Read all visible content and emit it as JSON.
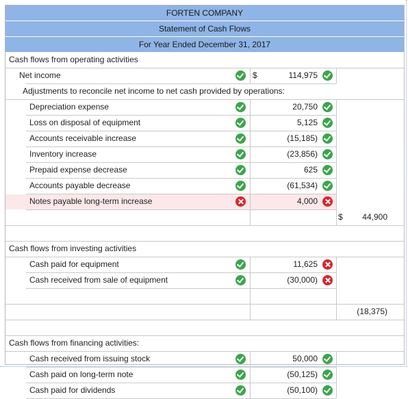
{
  "header": {
    "company": "FORTEN COMPANY",
    "statement": "Statement of Cash Flows",
    "period": "For Year Ended December 31, 2017"
  },
  "operating": {
    "heading": "Cash flows from operating activities",
    "net_income": {
      "label": "Net income",
      "currency": "$",
      "amount": "114,975",
      "label_status": "correct",
      "amount_status": "correct"
    },
    "adjustments_heading": "Adjustments to reconcile net income to net cash provided by operations:",
    "items": [
      {
        "label": "Depreciation expense",
        "amount": "20,750",
        "label_status": "correct",
        "amount_status": "correct"
      },
      {
        "label": "Loss on disposal of equipment",
        "amount": "5,125",
        "label_status": "correct",
        "amount_status": "correct"
      },
      {
        "label": "Accounts receivable increase",
        "amount": "(15,185)",
        "label_status": "correct",
        "amount_status": "correct"
      },
      {
        "label": "Inventory increase",
        "amount": "(23,856)",
        "label_status": "correct",
        "amount_status": "correct"
      },
      {
        "label": "Prepaid expense decrease",
        "amount": "625",
        "label_status": "correct",
        "amount_status": "correct"
      },
      {
        "label": "Accounts payable decrease",
        "amount": "(61,534)",
        "label_status": "correct",
        "amount_status": "correct"
      },
      {
        "label": "Notes payable long-term increase",
        "amount": "4,000",
        "label_status": "incorrect",
        "amount_status": "incorrect"
      }
    ],
    "total_currency": "$",
    "total": "44,900"
  },
  "investing": {
    "heading": "Cash flows from investing activities",
    "items": [
      {
        "label": "Cash paid for equipment",
        "amount": "11,625",
        "label_status": "correct",
        "amount_status": "incorrect"
      },
      {
        "label": "Cash received from sale of equipment",
        "amount": "(30,000)",
        "label_status": "correct",
        "amount_status": "incorrect"
      }
    ],
    "total": "(18,375)"
  },
  "financing": {
    "heading": "Cash flows from financing activities:",
    "items": [
      {
        "label": "Cash received from issuing stock",
        "amount": "50,000",
        "label_status": "correct",
        "amount_status": "correct"
      },
      {
        "label": "Cash paid on long-term note",
        "amount": "(50,125)",
        "label_status": "correct",
        "amount_status": "correct"
      },
      {
        "label": "Cash paid for dividends",
        "amount": "(50,100)",
        "label_status": "correct",
        "amount_status": "correct"
      }
    ]
  },
  "colors": {
    "header_bg": "#8fb4e6",
    "correct": "#3aa64a",
    "incorrect": "#d9262c",
    "error_row": "#fce8e8"
  },
  "icons": {
    "correct": "check-circle-icon",
    "incorrect": "x-circle-icon"
  }
}
